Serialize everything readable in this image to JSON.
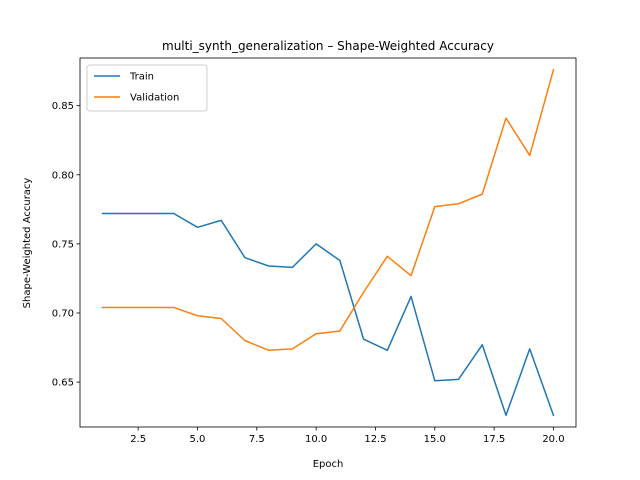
{
  "chart_data": {
    "type": "line",
    "title": "multi_synth_generalization – Shape-Weighted Accuracy",
    "xlabel": "Epoch",
    "ylabel": "Shape-Weighted Accuracy",
    "xlim": [
      0.05,
      20.95
    ],
    "ylim": [
      0.6175,
      0.8845
    ],
    "xticks": [
      2.5,
      5.0,
      7.5,
      10.0,
      12.5,
      15.0,
      17.5,
      20.0
    ],
    "xtick_labels": [
      "2.5",
      "5.0",
      "7.5",
      "10.0",
      "12.5",
      "15.0",
      "17.5",
      "20.0"
    ],
    "yticks": [
      0.65,
      0.7,
      0.75,
      0.8,
      0.85
    ],
    "ytick_labels": [
      "0.65",
      "0.70",
      "0.75",
      "0.80",
      "0.85"
    ],
    "grid": false,
    "legend_position": "top-left",
    "x": [
      1,
      2,
      3,
      4,
      5,
      6,
      7,
      8,
      9,
      10,
      11,
      12,
      13,
      14,
      15,
      16,
      17,
      18,
      19,
      20
    ],
    "series": [
      {
        "name": "Train",
        "color": "#1f77b4",
        "values": [
          0.772,
          0.772,
          0.772,
          0.772,
          0.762,
          0.767,
          0.74,
          0.734,
          0.733,
          0.75,
          0.738,
          0.681,
          0.673,
          0.712,
          0.651,
          0.652,
          0.677,
          0.626,
          0.674,
          0.626
        ]
      },
      {
        "name": "Validation",
        "color": "#ff7f0e",
        "values": [
          0.704,
          0.704,
          0.704,
          0.704,
          0.698,
          0.696,
          0.68,
          0.673,
          0.674,
          0.685,
          0.687,
          0.715,
          0.741,
          0.727,
          0.777,
          0.779,
          0.786,
          0.841,
          0.814,
          0.876
        ]
      }
    ]
  }
}
